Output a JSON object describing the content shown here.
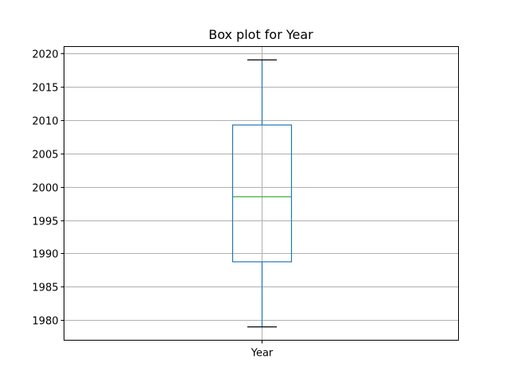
{
  "chart_data": {
    "type": "box",
    "title": "Box plot for Year",
    "xlabel": "",
    "ylabel": "",
    "categories": [
      "Year"
    ],
    "boxes": [
      {
        "name": "Year",
        "whisker_low": 1979,
        "q1": 1988.75,
        "median": 1998.5,
        "q3": 2009.25,
        "whisker_high": 2019
      }
    ],
    "ylim": [
      1977.0,
      2021.0
    ],
    "yticks": [
      1980,
      1985,
      1990,
      1995,
      2000,
      2005,
      2010,
      2015,
      2020
    ],
    "ytick_labels": [
      "1980",
      "1985",
      "1990",
      "1995",
      "2000",
      "2005",
      "2010",
      "2015",
      "2020"
    ],
    "grid": true,
    "colors": {
      "box": "#1f77b4",
      "median": "#2ca02c",
      "whisker_cap": "#000000",
      "grid": "#b0b0b0",
      "frame": "#000000"
    }
  }
}
